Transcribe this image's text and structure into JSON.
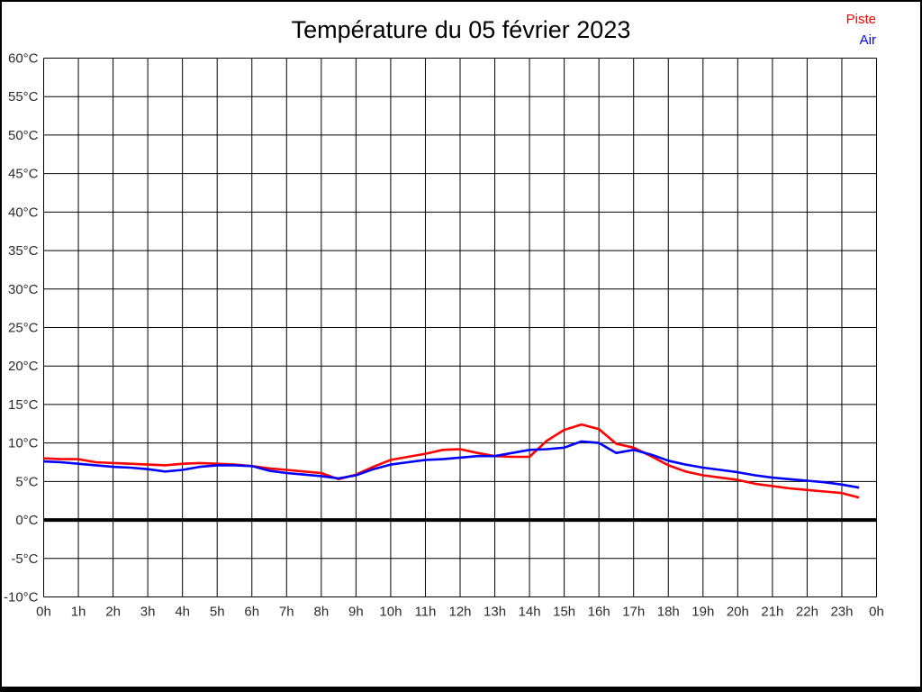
{
  "chart_data": {
    "type": "line",
    "title": "Température du 05 février 2023",
    "xlim": [
      0,
      24
    ],
    "ylim": [
      -10,
      60
    ],
    "y_step": 5,
    "grid": true,
    "zero_line": true,
    "legend_position": "top-right",
    "x_ticks": [
      "0h",
      "1h",
      "2h",
      "3h",
      "4h",
      "5h",
      "6h",
      "7h",
      "8h",
      "9h",
      "10h",
      "11h",
      "12h",
      "13h",
      "14h",
      "15h",
      "16h",
      "17h",
      "18h",
      "19h",
      "20h",
      "21h",
      "22h",
      "23h",
      "0h"
    ],
    "y_ticks": [
      "60°C",
      "55°C",
      "50°C",
      "45°C",
      "40°C",
      "35°C",
      "30°C",
      "25°C",
      "20°C",
      "15°C",
      "10°C",
      "5°C",
      "0°C",
      "-5°C",
      "-10°C"
    ],
    "x": [
      0,
      0.5,
      1,
      1.5,
      2,
      2.5,
      3,
      3.5,
      4,
      4.5,
      5,
      5.5,
      6,
      6.5,
      7,
      7.5,
      8,
      8.5,
      9,
      9.5,
      10,
      10.5,
      11,
      11.5,
      12,
      12.5,
      13,
      13.5,
      14,
      14.5,
      15,
      15.5,
      16,
      16.5,
      17,
      17.5,
      18,
      18.5,
      19,
      19.5,
      20,
      20.5,
      21,
      21.5,
      22,
      22.5,
      23,
      23.5
    ],
    "series": [
      {
        "name": "Piste",
        "color": "#ff0000",
        "values": [
          8.0,
          7.9,
          7.9,
          7.5,
          7.4,
          7.3,
          7.2,
          7.1,
          7.3,
          7.4,
          7.3,
          7.2,
          7.0,
          6.7,
          6.5,
          6.3,
          6.1,
          5.3,
          5.9,
          6.9,
          7.8,
          8.2,
          8.6,
          9.1,
          9.2,
          8.7,
          8.3,
          8.2,
          8.2,
          10.3,
          11.7,
          12.4,
          11.8,
          9.9,
          9.4,
          8.3,
          7.1,
          6.3,
          5.8,
          5.5,
          5.2,
          4.7,
          4.4,
          4.1,
          3.9,
          3.7,
          3.5,
          2.9
        ]
      },
      {
        "name": "Air",
        "color": "#0000ff",
        "values": [
          7.6,
          7.5,
          7.3,
          7.1,
          6.9,
          6.8,
          6.6,
          6.3,
          6.5,
          6.9,
          7.1,
          7.1,
          7.0,
          6.4,
          6.1,
          5.9,
          5.7,
          5.4,
          5.8,
          6.6,
          7.2,
          7.5,
          7.8,
          7.9,
          8.1,
          8.3,
          8.3,
          8.7,
          9.1,
          9.2,
          9.4,
          10.2,
          10.0,
          8.7,
          9.1,
          8.5,
          7.7,
          7.2,
          6.8,
          6.5,
          6.2,
          5.8,
          5.5,
          5.3,
          5.1,
          4.9,
          4.6,
          4.2
        ]
      }
    ]
  }
}
